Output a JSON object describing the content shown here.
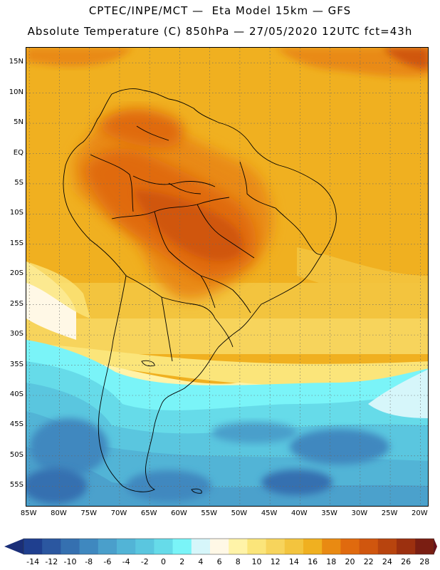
{
  "title": {
    "line1": "CPTEC/INPE/MCT —  Eta Model 15km — GFS",
    "line2": "Absolute Temperature (C) 850hPa — 27/05/2020 12UTC fct=43h"
  },
  "map": {
    "lat_range": [
      -58.5,
      17.5
    ],
    "lon_range": [
      -85.5,
      -18.5
    ],
    "lat_ticks": [
      {
        "value": 15,
        "label": "15N"
      },
      {
        "value": 10,
        "label": "10N"
      },
      {
        "value": 5,
        "label": "5N"
      },
      {
        "value": 0,
        "label": "EQ"
      },
      {
        "value": -5,
        "label": "5S"
      },
      {
        "value": -10,
        "label": "10S"
      },
      {
        "value": -15,
        "label": "15S"
      },
      {
        "value": -20,
        "label": "20S"
      },
      {
        "value": -25,
        "label": "25S"
      },
      {
        "value": -30,
        "label": "30S"
      },
      {
        "value": -35,
        "label": "35S"
      },
      {
        "value": -40,
        "label": "40S"
      },
      {
        "value": -45,
        "label": "45S"
      },
      {
        "value": -50,
        "label": "50S"
      },
      {
        "value": -55,
        "label": "55S"
      }
    ],
    "lon_ticks": [
      {
        "value": -85,
        "label": "85W"
      },
      {
        "value": -80,
        "label": "80W"
      },
      {
        "value": -75,
        "label": "75W"
      },
      {
        "value": -70,
        "label": "70W"
      },
      {
        "value": -65,
        "label": "65W"
      },
      {
        "value": -60,
        "label": "60W"
      },
      {
        "value": -55,
        "label": "55W"
      },
      {
        "value": -50,
        "label": "50W"
      },
      {
        "value": -45,
        "label": "45W"
      },
      {
        "value": -40,
        "label": "40W"
      },
      {
        "value": -35,
        "label": "35W"
      },
      {
        "value": -30,
        "label": "30W"
      },
      {
        "value": -25,
        "label": "25W"
      },
      {
        "value": -20,
        "label": "20W"
      }
    ]
  },
  "colorbar": {
    "colors": [
      "#1f3f8f",
      "#2b57a0",
      "#3570b0",
      "#3f88bf",
      "#4a9fcb",
      "#52b4d6",
      "#5ac6df",
      "#66dbe9",
      "#7af4f8",
      "#d6f6fa",
      "#fff8e6",
      "#fff3a8",
      "#fbe57a",
      "#f7d45c",
      "#f3c43e",
      "#f0b020",
      "#e98a12",
      "#e06a0e",
      "#d0560e",
      "#b8440e",
      "#9c300f",
      "#7a1e12"
    ],
    "left_arrow_color": "#1a2e78",
    "right_arrow_color": "#6b0f1a",
    "labels": [
      "-14",
      "-12",
      "-10",
      "-8",
      "-6",
      "-4",
      "-2",
      "0",
      "2",
      "4",
      "6",
      "8",
      "10",
      "12",
      "14",
      "16",
      "18",
      "20",
      "22",
      "24",
      "26",
      "28"
    ]
  }
}
